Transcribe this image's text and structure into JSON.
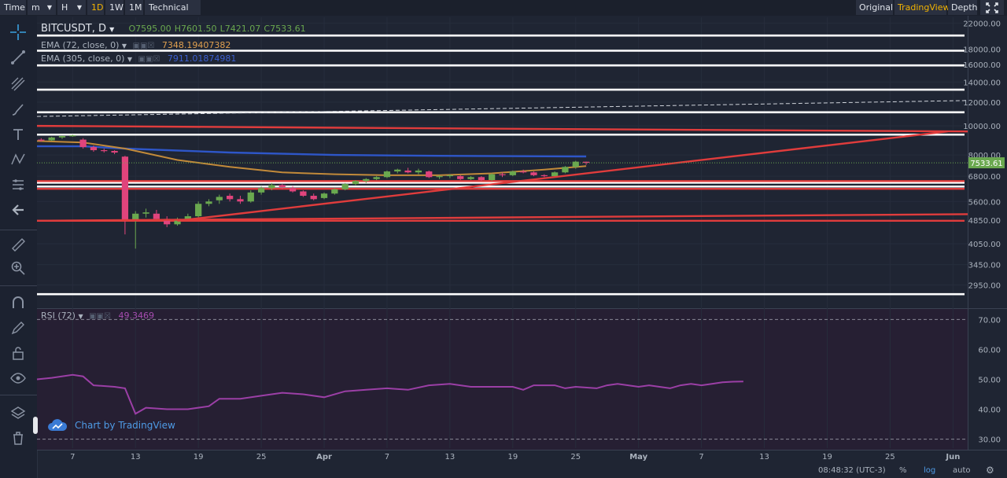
{
  "toolbar": {
    "time_label": "Time",
    "minutes_label": "m",
    "hours_label": "H",
    "intervals": [
      "1D",
      "1W",
      "1M"
    ],
    "active_interval": "1D",
    "indicators_label": "Technical Ind",
    "view_original": "Original",
    "view_tradingview": "TradingView",
    "view_depth": "Depth",
    "active_view": "TradingView"
  },
  "colors": {
    "background": "#1f2533",
    "rsi_background": "#261f33",
    "up_candle": "#6aa84f",
    "down_candle": "#e0447c",
    "ema72": "#c28a3a",
    "ema305": "#2e56c8",
    "rsi_line": "#9b3fa6",
    "trendline_red": "#e03c3c",
    "level_white": "#ffffff",
    "price_badge": "#6aa84f"
  },
  "legend": {
    "symbol": "BITCUSDT, D",
    "ohlc": {
      "o": "O7595.00",
      "h": "H7601.50",
      "l": "L7421.07",
      "c": "C7533.61"
    },
    "ema72_label": "EMA (72, close, 0)",
    "ema72_value": "7348.19407382",
    "ema305_label": "EMA (305, close, 0)",
    "ema305_value": "7911.01874981",
    "rsi_label": "RSI (72)",
    "rsi_value": "49.3469"
  },
  "watermark": "Chart by TradingView",
  "status": {
    "time": "08:48:32 (UTC-3)",
    "percent": "%",
    "log": "log",
    "auto": "auto"
  },
  "chart_data": [
    {
      "type": "candlestick",
      "title": "BITCUSDT, D",
      "scale": "log",
      "ylim": [
        2500,
        23000
      ],
      "y_ticks": [
        "22000.00",
        "18000.00",
        "16000.00",
        "14000.00",
        "12000.00",
        "10000.00",
        "8000.00",
        "6800.00",
        "5600.00",
        "4850.00",
        "4050.00",
        "3450.00",
        "2950.00"
      ],
      "last_price": "7533.61",
      "x_tick_labels": [
        {
          "label": "7",
          "day": 5
        },
        {
          "label": "13",
          "day": 11
        },
        {
          "label": "19",
          "day": 17
        },
        {
          "label": "25",
          "day": 23
        },
        {
          "label": "Apr",
          "day": 29
        },
        {
          "label": "7",
          "day": 35
        },
        {
          "label": "13",
          "day": 41
        },
        {
          "label": "19",
          "day": 47
        },
        {
          "label": "25",
          "day": 53
        },
        {
          "label": "May",
          "day": 59
        },
        {
          "label": "7",
          "day": 65
        },
        {
          "label": "13",
          "day": 71
        },
        {
          "label": "19",
          "day": 77
        },
        {
          "label": "25",
          "day": 83
        },
        {
          "label": "Jun",
          "day": 89
        }
      ],
      "day_range": [
        1.6,
        90.4
      ],
      "candles": [
        [
          2,
          9000,
          9100,
          8850,
          8950
        ],
        [
          3,
          8950,
          9200,
          8900,
          9150
        ],
        [
          4,
          9150,
          9300,
          9050,
          9250
        ],
        [
          5,
          9250,
          9350,
          9200,
          9300
        ],
        [
          6,
          9000,
          9100,
          8400,
          8500
        ],
        [
          7,
          8500,
          8600,
          8200,
          8300
        ],
        [
          8,
          8300,
          8400,
          8150,
          8250
        ],
        [
          9,
          8250,
          8300,
          8050,
          8150
        ],
        [
          10,
          7900,
          7950,
          4350,
          4850
        ],
        [
          11,
          4850,
          5200,
          3900,
          5100
        ],
        [
          12,
          5100,
          5300,
          4950,
          5150
        ],
        [
          13,
          5100,
          5250,
          4850,
          4900
        ],
        [
          14,
          4900,
          5000,
          4600,
          4700
        ],
        [
          15,
          4700,
          4950,
          4650,
          4900
        ],
        [
          16,
          4900,
          5100,
          4850,
          5000
        ],
        [
          17,
          5000,
          5600,
          4950,
          5500
        ],
        [
          18,
          5500,
          5700,
          5400,
          5600
        ],
        [
          19,
          5650,
          5900,
          5500,
          5800
        ],
        [
          20,
          5850,
          5950,
          5600,
          5700
        ],
        [
          21,
          5700,
          5850,
          5500,
          5600
        ],
        [
          22,
          5600,
          6100,
          5550,
          6000
        ],
        [
          23,
          6000,
          6300,
          5900,
          6200
        ],
        [
          24,
          6200,
          6450,
          6100,
          6350
        ],
        [
          25,
          6350,
          6400,
          6150,
          6250
        ],
        [
          26,
          6200,
          6300,
          6000,
          6050
        ],
        [
          27,
          6050,
          6100,
          5800,
          5850
        ],
        [
          28,
          5850,
          5950,
          5650,
          5700
        ],
        [
          29,
          5750,
          6000,
          5700,
          5950
        ],
        [
          30,
          5950,
          6200,
          5900,
          6150
        ],
        [
          31,
          6150,
          6450,
          6100,
          6400
        ],
        [
          32,
          6400,
          6600,
          6350,
          6550
        ],
        [
          33,
          6550,
          6700,
          6450,
          6650
        ],
        [
          34,
          6650,
          6800,
          6600,
          6750
        ],
        [
          35,
          6750,
          7100,
          6700,
          7050
        ],
        [
          36,
          7050,
          7200,
          6950,
          7150
        ],
        [
          37,
          7100,
          7250,
          6950,
          7000
        ],
        [
          38,
          7000,
          7200,
          6900,
          7100
        ],
        [
          39,
          7050,
          7100,
          6700,
          6750
        ],
        [
          40,
          6750,
          6850,
          6650,
          6800
        ],
        [
          41,
          6800,
          6900,
          6700,
          6850
        ],
        [
          42,
          6800,
          6850,
          6600,
          6650
        ],
        [
          43,
          6650,
          6800,
          6600,
          6750
        ],
        [
          44,
          6750,
          6800,
          6550,
          6600
        ],
        [
          45,
          6600,
          6950,
          6550,
          6900
        ],
        [
          46,
          6900,
          7000,
          6750,
          6850
        ],
        [
          47,
          6850,
          7100,
          6800,
          7050
        ],
        [
          48,
          7050,
          7150,
          6950,
          7000
        ],
        [
          49,
          7000,
          7050,
          6800,
          6850
        ],
        [
          50,
          6850,
          6900,
          6750,
          6800
        ],
        [
          51,
          6800,
          7050,
          6750,
          7000
        ],
        [
          52,
          7000,
          7350,
          6950,
          7300
        ],
        [
          53,
          7300,
          7650,
          7200,
          7600
        ],
        [
          54,
          7595,
          7601.5,
          7421.07,
          7533.61
        ]
      ],
      "ema72": [
        [
          1.6,
          8900
        ],
        [
          6,
          8800
        ],
        [
          10,
          8400
        ],
        [
          15,
          7700
        ],
        [
          20,
          7300
        ],
        [
          25,
          7000
        ],
        [
          30,
          6900
        ],
        [
          35,
          6850
        ],
        [
          40,
          6850
        ],
        [
          45,
          6950
        ],
        [
          50,
          7150
        ],
        [
          54,
          7348
        ]
      ],
      "ema305": [
        [
          1.6,
          8550
        ],
        [
          6,
          8550
        ],
        [
          10,
          8400
        ],
        [
          20,
          8150
        ],
        [
          30,
          8000
        ],
        [
          40,
          7950
        ],
        [
          50,
          7920
        ],
        [
          54,
          7911
        ]
      ],
      "horizontal_levels_white": [
        20000,
        17800,
        15900,
        13200,
        11100,
        9350,
        6470,
        6280,
        2750
      ],
      "horizontal_levels_red": [
        6550,
        6170,
        4830
      ],
      "trendlines_red": [
        {
          "from": [
            1.6,
            10000
          ],
          "to": [
            90.4,
            9580
          ]
        },
        {
          "from": [
            15,
            4830
          ],
          "to": [
            88.5,
            9580
          ]
        },
        {
          "from": [
            1.6,
            4830
          ],
          "to": [
            90.4,
            5080
          ]
        }
      ],
      "dashed_resistance": [
        {
          "from": [
            1.6,
            10750
          ],
          "to": [
            90.4,
            12150
          ]
        }
      ]
    },
    {
      "type": "line",
      "title": "RSI (72)",
      "ylim": [
        27,
        73
      ],
      "y_ticks": [
        "70.00",
        "60.00",
        "50.00",
        "40.00",
        "30.00"
      ],
      "guide_levels": [
        70,
        30
      ],
      "points": [
        [
          1.6,
          50
        ],
        [
          3,
          50.5
        ],
        [
          5,
          51.5
        ],
        [
          6,
          51
        ],
        [
          7,
          48
        ],
        [
          9,
          47.5
        ],
        [
          10,
          47
        ],
        [
          11,
          38.5
        ],
        [
          12,
          40.5
        ],
        [
          14,
          40
        ],
        [
          16,
          40
        ],
        [
          18,
          41
        ],
        [
          19,
          43.5
        ],
        [
          21,
          43.5
        ],
        [
          23,
          44.5
        ],
        [
          25,
          45.5
        ],
        [
          27,
          45
        ],
        [
          29,
          44
        ],
        [
          31,
          46
        ],
        [
          33,
          46.5
        ],
        [
          35,
          47
        ],
        [
          37,
          46.5
        ],
        [
          39,
          48
        ],
        [
          41,
          48.5
        ],
        [
          43,
          47.5
        ],
        [
          45,
          47.5
        ],
        [
          47,
          47.5
        ],
        [
          48,
          46.5
        ],
        [
          49,
          48
        ],
        [
          51,
          48
        ],
        [
          52,
          47
        ],
        [
          53,
          47.5
        ],
        [
          55,
          47
        ],
        [
          56,
          48
        ],
        [
          57,
          48.5
        ],
        [
          58,
          48
        ],
        [
          59,
          47.5
        ],
        [
          60,
          48
        ],
        [
          61,
          47.5
        ],
        [
          62,
          47
        ],
        [
          63,
          48
        ],
        [
          64,
          48.5
        ],
        [
          65,
          48
        ],
        [
          66,
          48.5
        ],
        [
          67,
          49
        ],
        [
          68,
          49.2
        ],
        [
          69,
          49.3
        ]
      ]
    }
  ]
}
